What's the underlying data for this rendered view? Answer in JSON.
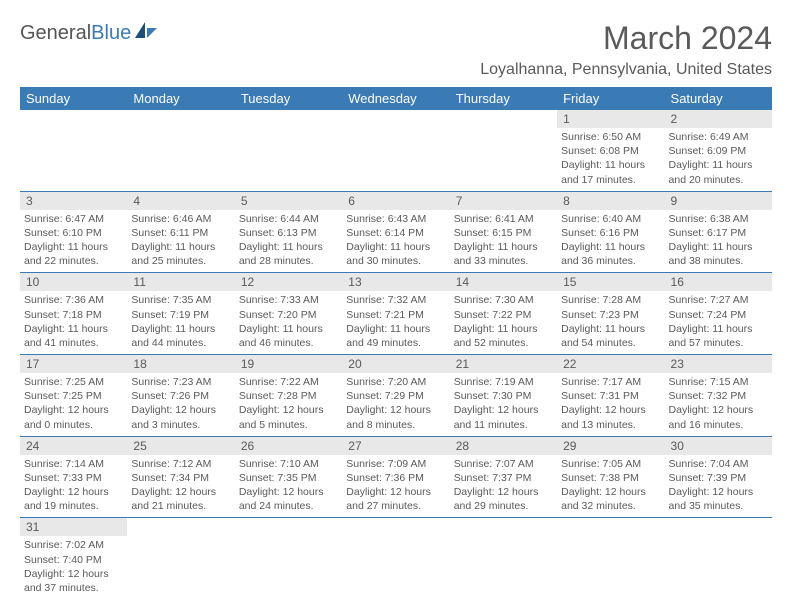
{
  "logo": {
    "general": "General",
    "blue": "Blue"
  },
  "title": "March 2024",
  "location": "Loyalhanna, Pennsylvania, United States",
  "colors": {
    "header_bg": "#3a7bb5",
    "header_text": "#ffffff",
    "daynum_bg": "#e8e8e8",
    "text": "#5a5a5a",
    "border": "#3a7bb5",
    "page_bg": "#ffffff"
  },
  "day_headers": [
    "Sunday",
    "Monday",
    "Tuesday",
    "Wednesday",
    "Thursday",
    "Friday",
    "Saturday"
  ],
  "weeks": [
    [
      null,
      null,
      null,
      null,
      null,
      {
        "n": "1",
        "sr": "6:50 AM",
        "ss": "6:08 PM",
        "dl": "11 hours and 17 minutes."
      },
      {
        "n": "2",
        "sr": "6:49 AM",
        "ss": "6:09 PM",
        "dl": "11 hours and 20 minutes."
      }
    ],
    [
      {
        "n": "3",
        "sr": "6:47 AM",
        "ss": "6:10 PM",
        "dl": "11 hours and 22 minutes."
      },
      {
        "n": "4",
        "sr": "6:46 AM",
        "ss": "6:11 PM",
        "dl": "11 hours and 25 minutes."
      },
      {
        "n": "5",
        "sr": "6:44 AM",
        "ss": "6:13 PM",
        "dl": "11 hours and 28 minutes."
      },
      {
        "n": "6",
        "sr": "6:43 AM",
        "ss": "6:14 PM",
        "dl": "11 hours and 30 minutes."
      },
      {
        "n": "7",
        "sr": "6:41 AM",
        "ss": "6:15 PM",
        "dl": "11 hours and 33 minutes."
      },
      {
        "n": "8",
        "sr": "6:40 AM",
        "ss": "6:16 PM",
        "dl": "11 hours and 36 minutes."
      },
      {
        "n": "9",
        "sr": "6:38 AM",
        "ss": "6:17 PM",
        "dl": "11 hours and 38 minutes."
      }
    ],
    [
      {
        "n": "10",
        "sr": "7:36 AM",
        "ss": "7:18 PM",
        "dl": "11 hours and 41 minutes."
      },
      {
        "n": "11",
        "sr": "7:35 AM",
        "ss": "7:19 PM",
        "dl": "11 hours and 44 minutes."
      },
      {
        "n": "12",
        "sr": "7:33 AM",
        "ss": "7:20 PM",
        "dl": "11 hours and 46 minutes."
      },
      {
        "n": "13",
        "sr": "7:32 AM",
        "ss": "7:21 PM",
        "dl": "11 hours and 49 minutes."
      },
      {
        "n": "14",
        "sr": "7:30 AM",
        "ss": "7:22 PM",
        "dl": "11 hours and 52 minutes."
      },
      {
        "n": "15",
        "sr": "7:28 AM",
        "ss": "7:23 PM",
        "dl": "11 hours and 54 minutes."
      },
      {
        "n": "16",
        "sr": "7:27 AM",
        "ss": "7:24 PM",
        "dl": "11 hours and 57 minutes."
      }
    ],
    [
      {
        "n": "17",
        "sr": "7:25 AM",
        "ss": "7:25 PM",
        "dl": "12 hours and 0 minutes."
      },
      {
        "n": "18",
        "sr": "7:23 AM",
        "ss": "7:26 PM",
        "dl": "12 hours and 3 minutes."
      },
      {
        "n": "19",
        "sr": "7:22 AM",
        "ss": "7:28 PM",
        "dl": "12 hours and 5 minutes."
      },
      {
        "n": "20",
        "sr": "7:20 AM",
        "ss": "7:29 PM",
        "dl": "12 hours and 8 minutes."
      },
      {
        "n": "21",
        "sr": "7:19 AM",
        "ss": "7:30 PM",
        "dl": "12 hours and 11 minutes."
      },
      {
        "n": "22",
        "sr": "7:17 AM",
        "ss": "7:31 PM",
        "dl": "12 hours and 13 minutes."
      },
      {
        "n": "23",
        "sr": "7:15 AM",
        "ss": "7:32 PM",
        "dl": "12 hours and 16 minutes."
      }
    ],
    [
      {
        "n": "24",
        "sr": "7:14 AM",
        "ss": "7:33 PM",
        "dl": "12 hours and 19 minutes."
      },
      {
        "n": "25",
        "sr": "7:12 AM",
        "ss": "7:34 PM",
        "dl": "12 hours and 21 minutes."
      },
      {
        "n": "26",
        "sr": "7:10 AM",
        "ss": "7:35 PM",
        "dl": "12 hours and 24 minutes."
      },
      {
        "n": "27",
        "sr": "7:09 AM",
        "ss": "7:36 PM",
        "dl": "12 hours and 27 minutes."
      },
      {
        "n": "28",
        "sr": "7:07 AM",
        "ss": "7:37 PM",
        "dl": "12 hours and 29 minutes."
      },
      {
        "n": "29",
        "sr": "7:05 AM",
        "ss": "7:38 PM",
        "dl": "12 hours and 32 minutes."
      },
      {
        "n": "30",
        "sr": "7:04 AM",
        "ss": "7:39 PM",
        "dl": "12 hours and 35 minutes."
      }
    ],
    [
      {
        "n": "31",
        "sr": "7:02 AM",
        "ss": "7:40 PM",
        "dl": "12 hours and 37 minutes."
      },
      null,
      null,
      null,
      null,
      null,
      null
    ]
  ],
  "labels": {
    "sunrise": "Sunrise:",
    "sunset": "Sunset:",
    "daylight": "Daylight:"
  }
}
